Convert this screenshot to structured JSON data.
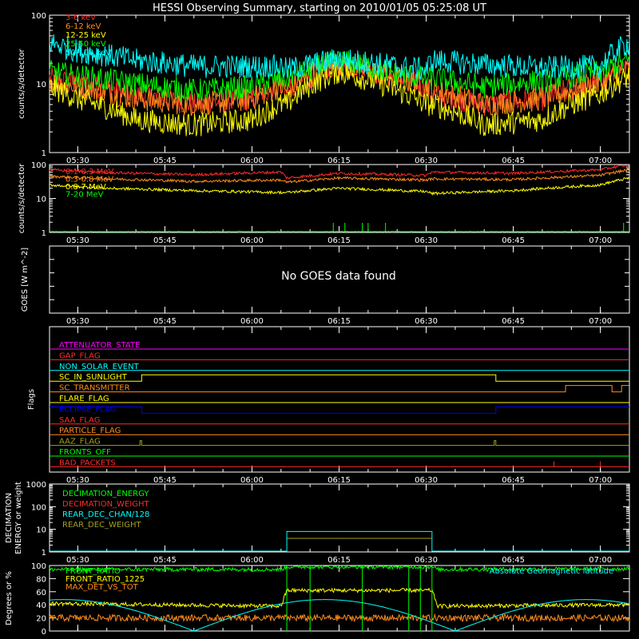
{
  "page_title": "HESSI Observing Summary, starting on 2010/01/05 05:25:08 UT",
  "colors": {
    "background": "#000000",
    "axes": "#ffffff",
    "red": "#ff2a2a",
    "orange": "#ff8c1a",
    "yellow": "#ffff00",
    "green": "#00ff00",
    "cyan": "#00ffff",
    "magenta": "#ff00ff",
    "blue": "#0000ff",
    "olive": "#a0a020"
  },
  "x_axis": {
    "range_minutes": [
      "05:25:08",
      "07:05:00"
    ],
    "tick_labels": [
      "05:30",
      "05:45",
      "06:00",
      "06:15",
      "06:30",
      "06:45",
      "07:00"
    ]
  },
  "chart_data": [
    {
      "type": "line",
      "name": "hessi_count_rates",
      "ylabel": "counts/s/detector",
      "yscale": "log",
      "ylim": [
        1,
        100
      ],
      "y_tick_labels": [
        "1",
        "10",
        "100"
      ],
      "x": [
        "05:25",
        "05:30",
        "05:40",
        "05:50",
        "06:00",
        "06:05",
        "06:06",
        "06:15",
        "06:25",
        "06:30",
        "06:31",
        "06:40",
        "06:50",
        "07:00",
        "07:05"
      ],
      "series": [
        {
          "name": "3-6 keV",
          "color_key": "red",
          "values": [
            12,
            10,
            7,
            5,
            6,
            10,
            7,
            20,
            12,
            9,
            7,
            5,
            6,
            11,
            17
          ]
        },
        {
          "name": "6-12 keV",
          "color_key": "orange",
          "values": [
            11,
            9,
            6,
            5,
            6,
            9,
            8,
            19,
            12,
            9,
            8,
            5,
            6,
            10,
            16
          ]
        },
        {
          "name": "12-25 keV",
          "color_key": "yellow",
          "values": [
            9,
            6,
            3,
            2.5,
            3,
            5,
            5,
            15,
            8,
            5,
            5,
            2.5,
            3,
            7,
            13
          ]
        },
        {
          "name": "25-50 keV",
          "color_key": "green",
          "values": [
            15,
            13,
            10,
            8,
            9,
            12,
            12,
            22,
            14,
            12,
            12,
            9,
            11,
            15,
            22
          ]
        },
        {
          "name": "50-100 keV",
          "color_key": "cyan",
          "values": [
            40,
            30,
            22,
            18,
            18,
            18,
            16,
            23,
            18,
            16,
            22,
            19,
            17,
            18,
            40
          ]
        }
      ]
    },
    {
      "type": "line",
      "name": "hessi_high_energy_rates",
      "ylabel": "counts/s/detector",
      "yscale": "log",
      "ylim": [
        1,
        100
      ],
      "y_tick_labels": [
        "1",
        "10",
        "100"
      ],
      "x": [
        "05:25",
        "05:35",
        "05:50",
        "06:05",
        "06:06",
        "06:15",
        "06:30",
        "06:31",
        "06:45",
        "07:00",
        "07:05"
      ],
      "series": [
        {
          "name": "0.1-0.3 MeV",
          "color_key": "red",
          "values": [
            70,
            58,
            50,
            60,
            40,
            55,
            48,
            60,
            55,
            70,
            100
          ]
        },
        {
          "name": "0.3-0.8 MeV",
          "color_key": "orange",
          "values": [
            45,
            38,
            32,
            35,
            30,
            40,
            35,
            38,
            36,
            48,
            70
          ]
        },
        {
          "name": "0.8-7 MeV",
          "color_key": "yellow",
          "values": [
            25,
            20,
            17,
            15,
            15,
            20,
            16,
            14,
            17,
            25,
            40
          ]
        },
        {
          "name": "7-20 MeV",
          "color_key": "green",
          "values": [
            1,
            1,
            1,
            1,
            1,
            1,
            1,
            1,
            1,
            1,
            1
          ]
        }
      ]
    },
    {
      "type": "line",
      "name": "goes",
      "ylabel": "GOES [W m^-2]",
      "message": "No GOES data found"
    },
    {
      "type": "line",
      "name": "flags",
      "ylabel": "Flags",
      "series": [
        {
          "name": "ATTENUATOR_STATE",
          "color_key": "magenta"
        },
        {
          "name": "GAP_FLAG",
          "color_key": "red"
        },
        {
          "name": "NON_SOLAR_EVENT",
          "color_key": "cyan"
        },
        {
          "name": "SC_IN_SUNLIGHT",
          "color_key": "yellow"
        },
        {
          "name": "SC_TRANSMITTER",
          "color_key": "orange"
        },
        {
          "name": "FLARE_FLAG",
          "color_key": "yellow"
        },
        {
          "name": "ECLIPSE_FLAG",
          "color_key": "blue"
        },
        {
          "name": "SAA_FLAG",
          "color_key": "red"
        },
        {
          "name": "PARTICLE_FLAG",
          "color_key": "orange"
        },
        {
          "name": "AAZ_FLAG",
          "color_key": "olive"
        },
        {
          "name": "FRONTS_OFF",
          "color_key": "green"
        },
        {
          "name": "BAD_PACKETS",
          "color_key": "red"
        }
      ]
    },
    {
      "type": "line",
      "name": "decimation",
      "ylabel": "DECIMATION ENERGY or weight",
      "yscale": "log",
      "ylim": [
        1,
        1000
      ],
      "y_tick_labels": [
        "1",
        "10",
        "100",
        "1000"
      ],
      "series": [
        {
          "name": "DECIMATION_ENERGY",
          "color_key": "green"
        },
        {
          "name": "DECIMATION_WEIGHT",
          "color_key": "red"
        },
        {
          "name": "REAR_DEC_CHAN/128",
          "color_key": "cyan"
        },
        {
          "name": "REAR_DEC_WEIGHT",
          "color_key": "olive"
        }
      ]
    },
    {
      "type": "line",
      "name": "front_ratio",
      "ylabel": "Degrees or %",
      "ylim": [
        0,
        100
      ],
      "y_tick_labels": [
        "0",
        "20",
        "40",
        "60",
        "80",
        "100"
      ],
      "series": [
        {
          "name": "FRONT_RATIO",
          "color_key": "green"
        },
        {
          "name": "FRONT_RATIO_1225",
          "color_key": "yellow"
        },
        {
          "name": "MAX_DET_VS_TOT",
          "color_key": "orange"
        },
        {
          "name": "Absolute Geomagnetic latitude",
          "color_key": "cyan"
        }
      ]
    }
  ]
}
